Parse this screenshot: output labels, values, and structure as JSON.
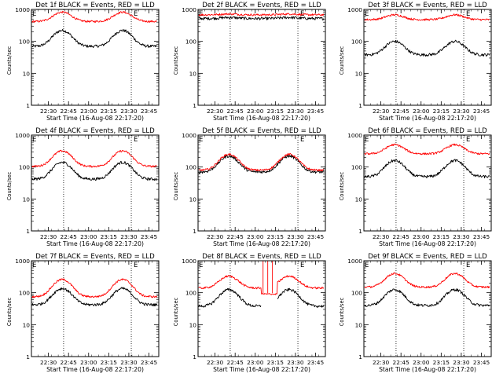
{
  "figure": {
    "ylabel": "Counts/sec",
    "xlabel": "Start Time (16-Aug-08 22:17:20)",
    "xtick_labels": [
      "22:30",
      "22:45",
      "23:00",
      "23:15",
      "23:30",
      "23:45"
    ],
    "ytick_labels": [
      "1",
      "10",
      "100",
      "1000"
    ],
    "corner_mark": "E",
    "series_colors": {
      "events": "#000000",
      "lld": "#ff0000"
    }
  },
  "chart_data": [
    {
      "type": "line",
      "title": "Det 1f BLACK = Events, RED = LLD",
      "xlabel": "Start Time (16-Aug-08 22:17:20)",
      "ylabel": "Counts/sec",
      "yscale": "log",
      "ylim": [
        1,
        1000
      ],
      "xlim_minutes": [
        0,
        95
      ],
      "xticks_minutes": [
        12.67,
        27.67,
        42.67,
        57.67,
        72.67,
        87.67
      ],
      "dashed_markers_minutes": [
        24,
        74.5
      ],
      "series": [
        {
          "name": "Events",
          "color": "#000000",
          "base": 70,
          "peak": 220,
          "peaks_minutes": [
            23,
            68
          ]
        },
        {
          "name": "LLD",
          "color": "#ff0000",
          "base": 420,
          "peak": 820,
          "peaks_minutes": [
            23,
            68
          ]
        }
      ]
    },
    {
      "type": "line",
      "title": "Det 2f BLACK = Events, RED = LLD",
      "xlabel": "Start Time (16-Aug-08 22:17:20)",
      "ylabel": "Counts/sec",
      "yscale": "log",
      "ylim": [
        1,
        1000
      ],
      "xlim_minutes": [
        0,
        95
      ],
      "xticks_minutes": [
        12.67,
        27.67,
        42.67,
        57.67,
        72.67,
        87.67
      ],
      "dashed_markers_minutes": [
        24,
        74.5
      ],
      "series": [
        {
          "name": "Events",
          "color": "#000000",
          "base": 520,
          "peak": 560,
          "peaks_minutes": [
            23,
            68
          ]
        },
        {
          "name": "LLD",
          "color": "#ff0000",
          "base": 680,
          "peak": 720,
          "peaks_minutes": [
            23,
            68
          ]
        }
      ]
    },
    {
      "type": "line",
      "title": "Det 3f BLACK = Events, RED = LLD",
      "xlabel": "Start Time (16-Aug-08 22:17:20)",
      "ylabel": "Counts/sec",
      "yscale": "log",
      "ylim": [
        1,
        1000
      ],
      "xlim_minutes": [
        0,
        95
      ],
      "xticks_minutes": [
        12.67,
        27.67,
        42.67,
        57.67,
        72.67,
        87.67
      ],
      "dashed_markers_minutes": [
        24,
        74.5
      ],
      "series": [
        {
          "name": "Events",
          "color": "#000000",
          "base": 38,
          "peak": 100,
          "peaks_minutes": [
            23,
            68
          ]
        },
        {
          "name": "LLD",
          "color": "#ff0000",
          "base": 480,
          "peak": 680,
          "peaks_minutes": [
            23,
            68
          ]
        }
      ]
    },
    {
      "type": "line",
      "title": "Det 4f BLACK = Events, RED = LLD",
      "xlabel": "Start Time (16-Aug-08 22:17:20)",
      "ylabel": "Counts/sec",
      "yscale": "log",
      "ylim": [
        1,
        1000
      ],
      "xlim_minutes": [
        0,
        95
      ],
      "xticks_minutes": [
        12.67,
        27.67,
        42.67,
        57.67,
        72.67,
        87.67
      ],
      "dashed_markers_minutes": [
        24,
        74.5
      ],
      "series": [
        {
          "name": "Events",
          "color": "#000000",
          "base": 42,
          "peak": 140,
          "peaks_minutes": [
            23,
            68
          ]
        },
        {
          "name": "LLD",
          "color": "#ff0000",
          "base": 105,
          "peak": 320,
          "peaks_minutes": [
            23,
            68
          ]
        }
      ]
    },
    {
      "type": "line",
      "title": "Det 5f BLACK = Events, RED = LLD",
      "xlabel": "Start Time (16-Aug-08 22:17:20)",
      "ylabel": "Counts/sec",
      "yscale": "log",
      "ylim": [
        1,
        1000
      ],
      "xlim_minutes": [
        0,
        95
      ],
      "xticks_minutes": [
        12.67,
        27.67,
        42.67,
        57.67,
        72.67,
        87.67
      ],
      "dashed_markers_minutes": [
        24,
        74.5
      ],
      "series": [
        {
          "name": "Events",
          "color": "#000000",
          "base": 70,
          "peak": 220,
          "peaks_minutes": [
            23,
            68
          ]
        },
        {
          "name": "LLD",
          "color": "#ff0000",
          "base": 80,
          "peak": 250,
          "peaks_minutes": [
            23,
            68
          ]
        }
      ]
    },
    {
      "type": "line",
      "title": "Det 6f BLACK = Events, RED = LLD",
      "xlabel": "Start Time (16-Aug-08 22:17:20)",
      "ylabel": "Counts/sec",
      "yscale": "log",
      "ylim": [
        1,
        1000
      ],
      "xlim_minutes": [
        0,
        95
      ],
      "xticks_minutes": [
        12.67,
        27.67,
        42.67,
        57.67,
        72.67,
        87.67
      ],
      "dashed_markers_minutes": [
        24,
        74.5
      ],
      "series": [
        {
          "name": "Events",
          "color": "#000000",
          "base": 50,
          "peak": 160,
          "peaks_minutes": [
            23,
            68
          ]
        },
        {
          "name": "LLD",
          "color": "#ff0000",
          "base": 260,
          "peak": 500,
          "peaks_minutes": [
            23,
            68
          ]
        }
      ]
    },
    {
      "type": "line",
      "title": "Det 7f BLACK = Events, RED = LLD",
      "xlabel": "Start Time (16-Aug-08 22:17:20)",
      "ylabel": "Counts/sec",
      "yscale": "log",
      "ylim": [
        1,
        1000
      ],
      "xlim_minutes": [
        0,
        95
      ],
      "xticks_minutes": [
        12.67,
        27.67,
        42.67,
        57.67,
        72.67,
        87.67
      ],
      "dashed_markers_minutes": [
        24,
        74.5
      ],
      "series": [
        {
          "name": "Events",
          "color": "#000000",
          "base": 42,
          "peak": 135,
          "peaks_minutes": [
            23,
            68
          ]
        },
        {
          "name": "LLD",
          "color": "#ff0000",
          "base": 75,
          "peak": 260,
          "peaks_minutes": [
            23,
            68
          ]
        }
      ]
    },
    {
      "type": "line",
      "title": "Det 8f BLACK = Events, RED = LLD",
      "xlabel": "Start Time (16-Aug-08 22:17:20)",
      "ylabel": "Counts/sec",
      "yscale": "log",
      "ylim": [
        1,
        1000
      ],
      "xlim_minutes": [
        0,
        95
      ],
      "xticks_minutes": [
        12.67,
        27.67,
        42.67,
        57.67,
        72.67,
        87.67
      ],
      "dashed_markers_minutes": [
        24,
        74.5
      ],
      "gap_minutes": [
        47,
        59
      ],
      "spikes": [
        {
          "minute": 48.5,
          "value": 1000
        },
        {
          "minute": 52,
          "value": 1000
        },
        {
          "minute": 55.5,
          "value": 1000
        }
      ],
      "series": [
        {
          "name": "Events",
          "color": "#000000",
          "base": 38,
          "peak": 125,
          "peaks_minutes": [
            23,
            68
          ]
        },
        {
          "name": "LLD",
          "color": "#ff0000",
          "base": 140,
          "peak": 330,
          "peaks_minutes": [
            23,
            68
          ]
        }
      ]
    },
    {
      "type": "line",
      "title": "Det 9f BLACK = Events, RED = LLD",
      "xlabel": "Start Time (16-Aug-08 22:17:20)",
      "ylabel": "Counts/sec",
      "yscale": "log",
      "ylim": [
        1,
        1000
      ],
      "xlim_minutes": [
        0,
        95
      ],
      "xticks_minutes": [
        12.67,
        27.67,
        42.67,
        57.67,
        72.67,
        87.67
      ],
      "dashed_markers_minutes": [
        24,
        74.5
      ],
      "series": [
        {
          "name": "Events",
          "color": "#000000",
          "base": 40,
          "peak": 125,
          "peaks_minutes": [
            23,
            68
          ]
        },
        {
          "name": "LLD",
          "color": "#ff0000",
          "base": 150,
          "peak": 400,
          "peaks_minutes": [
            23,
            68
          ]
        }
      ]
    }
  ]
}
